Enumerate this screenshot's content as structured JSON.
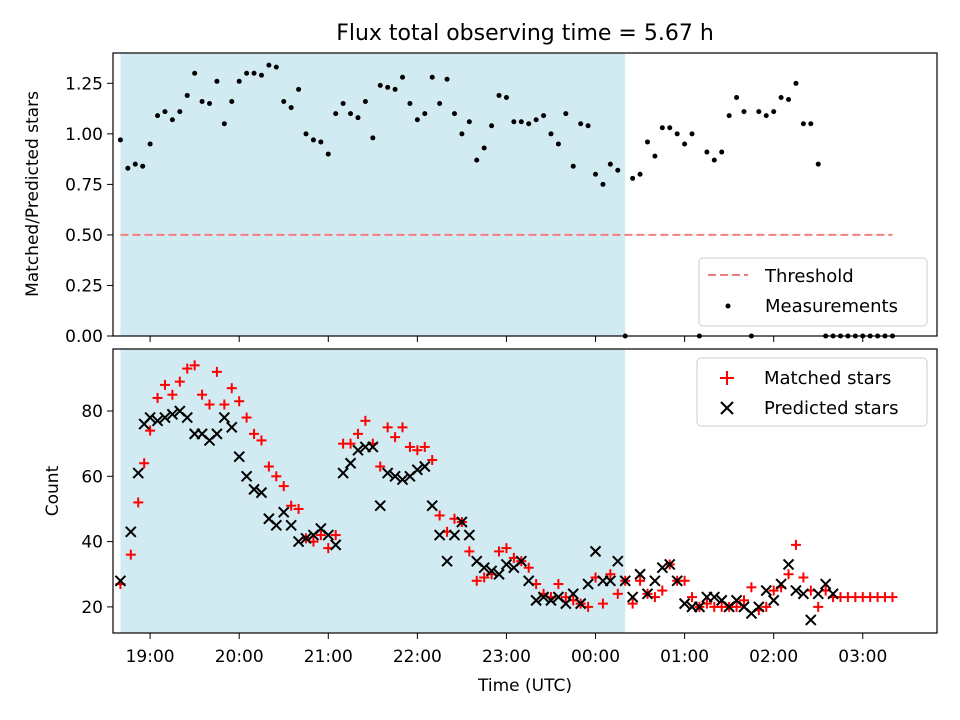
{
  "chart_data": [
    {
      "type": "scatter",
      "title": "Flux total observing time = 5.67 h",
      "ylabel": "Matched/Predicted stars",
      "xlabel": "",
      "xlim": [
        "18:35",
        "03:50"
      ],
      "ylim": [
        0,
        1.4
      ],
      "xticks": [
        "19:00",
        "20:00",
        "21:00",
        "22:00",
        "23:00",
        "00:00",
        "01:00",
        "02:00",
        "03:00"
      ],
      "yticks": [
        "0.00",
        "0.25",
        "0.50",
        "0.75",
        "1.00",
        "1.25"
      ],
      "legend_position": "lower-right",
      "shaded_interval": {
        "start": "18:40",
        "end": "00:20",
        "color": "#add8e6"
      },
      "threshold": {
        "name": "Threshold",
        "value": 0.5,
        "x_start": "18:40",
        "x_end": "03:20",
        "color": "#f08080"
      },
      "series": [
        {
          "name": "Measurements",
          "marker": "dot",
          "color": "#000000",
          "x": [
            "18:40",
            "18:45",
            "18:50",
            "18:55",
            "19:00",
            "19:05",
            "19:10",
            "19:15",
            "19:20",
            "19:25",
            "19:30",
            "19:35",
            "19:40",
            "19:45",
            "19:50",
            "19:55",
            "20:00",
            "20:05",
            "20:10",
            "20:15",
            "20:20",
            "20:25",
            "20:30",
            "20:35",
            "20:40",
            "20:45",
            "20:50",
            "20:55",
            "21:00",
            "21:05",
            "21:10",
            "21:15",
            "21:20",
            "21:25",
            "21:30",
            "21:35",
            "21:40",
            "21:45",
            "21:50",
            "21:55",
            "22:00",
            "22:05",
            "22:10",
            "22:15",
            "22:20",
            "22:25",
            "22:30",
            "22:35",
            "22:40",
            "22:45",
            "22:50",
            "22:55",
            "23:00",
            "23:05",
            "23:10",
            "23:15",
            "23:20",
            "23:25",
            "23:30",
            "23:35",
            "23:40",
            "23:45",
            "23:50",
            "23:55",
            "00:00",
            "00:05",
            "00:10",
            "00:15",
            "00:20",
            "00:25",
            "00:30",
            "00:35",
            "00:40",
            "00:45",
            "00:50",
            "00:55",
            "01:00",
            "01:05",
            "01:10",
            "01:15",
            "01:20",
            "01:25",
            "01:30",
            "01:35",
            "01:40",
            "01:45",
            "01:50",
            "01:55",
            "02:00",
            "02:05",
            "02:10",
            "02:15",
            "02:20",
            "02:25",
            "02:30",
            "02:35",
            "02:40",
            "02:45",
            "02:50",
            "02:55",
            "03:00",
            "03:05",
            "03:10",
            "03:15",
            "03:20"
          ],
          "values": [
            0.97,
            0.83,
            0.85,
            0.84,
            0.95,
            1.09,
            1.11,
            1.07,
            1.11,
            1.19,
            1.3,
            1.16,
            1.15,
            1.26,
            1.05,
            1.16,
            1.26,
            1.3,
            1.3,
            1.29,
            1.34,
            1.33,
            1.16,
            1.13,
            1.22,
            1.0,
            0.97,
            0.96,
            0.9,
            1.1,
            1.15,
            1.1,
            1.08,
            1.16,
            0.98,
            1.24,
            1.23,
            1.22,
            1.28,
            1.15,
            1.07,
            1.1,
            1.28,
            1.15,
            1.27,
            1.1,
            1.0,
            1.06,
            0.87,
            0.93,
            1.04,
            1.19,
            1.18,
            1.06,
            1.06,
            1.05,
            1.07,
            1.09,
            1.0,
            0.95,
            1.1,
            0.84,
            1.05,
            1.04,
            0.8,
            0.75,
            0.85,
            0.82,
            0.0,
            0.78,
            0.8,
            0.96,
            0.89,
            1.03,
            1.03,
            1.0,
            0.95,
            1.0,
            0.0,
            0.91,
            0.87,
            0.91,
            1.09,
            1.18,
            1.11,
            0.0,
            1.11,
            1.09,
            1.11,
            1.18,
            1.17,
            1.25,
            1.05,
            1.05,
            0.85,
            0.0,
            0.0,
            0.0,
            0.0,
            0.0,
            0.0,
            0.0,
            0.0,
            0.0,
            0.0
          ]
        }
      ]
    },
    {
      "type": "scatter",
      "title": "",
      "xlabel": "Time (UTC)",
      "ylabel": "Count",
      "xlim": [
        "18:35",
        "03:50"
      ],
      "ylim": [
        12,
        99
      ],
      "xticks": [
        "19:00",
        "20:00",
        "21:00",
        "22:00",
        "23:00",
        "00:00",
        "01:00",
        "02:00",
        "03:00"
      ],
      "yticks": [
        "20",
        "40",
        "60",
        "80"
      ],
      "legend_position": "top-right",
      "shaded_interval": {
        "start": "18:40",
        "end": "00:20",
        "color": "#add8e6"
      },
      "series": [
        {
          "name": "Matched stars",
          "marker": "plus",
          "color": "#ff0000",
          "x": [
            "18:40",
            "18:47",
            "18:52",
            "18:56",
            "19:00",
            "19:05",
            "19:10",
            "19:15",
            "19:20",
            "19:25",
            "19:30",
            "19:35",
            "19:40",
            "19:45",
            "19:50",
            "19:55",
            "20:00",
            "20:05",
            "20:10",
            "20:15",
            "20:20",
            "20:25",
            "20:30",
            "20:35",
            "20:40",
            "20:45",
            "20:50",
            "20:55",
            "21:00",
            "21:05",
            "21:10",
            "21:15",
            "21:20",
            "21:25",
            "21:30",
            "21:35",
            "21:40",
            "21:45",
            "21:50",
            "21:55",
            "22:00",
            "22:05",
            "22:10",
            "22:15",
            "22:20",
            "22:25",
            "22:30",
            "22:35",
            "22:40",
            "22:45",
            "22:50",
            "22:55",
            "23:00",
            "23:05",
            "23:10",
            "23:15",
            "23:20",
            "23:25",
            "23:30",
            "23:35",
            "23:40",
            "23:45",
            "23:50",
            "23:55",
            "00:00",
            "00:05",
            "00:10",
            "00:15",
            "00:20",
            "00:25",
            "00:30",
            "00:35",
            "00:40",
            "00:45",
            "00:50",
            "00:55",
            "01:00",
            "01:05",
            "01:10",
            "01:15",
            "01:20",
            "01:25",
            "01:30",
            "01:35",
            "01:40",
            "01:45",
            "01:50",
            "01:55",
            "02:00",
            "02:05",
            "02:10",
            "02:15",
            "02:20",
            "02:25",
            "02:30",
            "02:35",
            "02:40",
            "02:45",
            "02:50",
            "02:55",
            "03:00",
            "03:05",
            "03:10",
            "03:15",
            "03:20"
          ],
          "values": [
            27,
            36,
            52,
            64,
            74,
            84,
            88,
            85,
            89,
            93,
            94,
            85,
            82,
            92,
            82,
            87,
            83,
            78,
            73,
            71,
            63,
            60,
            57,
            51,
            50,
            41,
            40,
            42,
            38,
            42,
            70,
            70,
            73,
            77,
            70,
            63,
            75,
            72,
            75,
            69,
            68,
            69,
            65,
            48,
            43,
            47,
            46,
            37,
            28,
            29,
            30,
            37,
            38,
            35,
            34,
            32,
            27,
            24,
            23,
            27,
            23,
            22,
            21,
            20,
            29,
            21,
            30,
            24,
            28,
            21,
            28,
            24,
            23,
            25,
            33,
            28,
            28,
            23,
            20,
            21,
            20,
            20,
            20,
            20,
            22,
            26,
            19,
            20,
            25,
            26,
            30,
            39,
            29,
            25,
            20,
            25,
            23,
            23,
            23,
            23,
            23,
            23,
            23,
            23,
            23
          ]
        },
        {
          "name": "Predicted stars",
          "marker": "x",
          "color": "#000000",
          "x": [
            "18:40",
            "18:47",
            "18:52",
            "18:56",
            "19:00",
            "19:05",
            "19:10",
            "19:15",
            "19:20",
            "19:25",
            "19:30",
            "19:35",
            "19:40",
            "19:45",
            "19:50",
            "19:55",
            "20:00",
            "20:05",
            "20:10",
            "20:15",
            "20:20",
            "20:25",
            "20:30",
            "20:35",
            "20:40",
            "20:45",
            "20:50",
            "20:55",
            "21:00",
            "21:05",
            "21:10",
            "21:15",
            "21:20",
            "21:25",
            "21:30",
            "21:35",
            "21:40",
            "21:45",
            "21:50",
            "21:55",
            "22:00",
            "22:05",
            "22:10",
            "22:15",
            "22:20",
            "22:25",
            "22:30",
            "22:35",
            "22:40",
            "22:45",
            "22:50",
            "22:55",
            "23:00",
            "23:05",
            "23:10",
            "23:15",
            "23:20",
            "23:25",
            "23:30",
            "23:35",
            "23:40",
            "23:45",
            "23:50",
            "23:55",
            "00:00",
            "00:05",
            "00:10",
            "00:15",
            "00:20",
            "00:25",
            "00:30",
            "00:35",
            "00:40",
            "00:45",
            "00:50",
            "00:55",
            "01:00",
            "01:05",
            "01:10",
            "01:15",
            "01:20",
            "01:25",
            "01:30",
            "01:35",
            "01:40",
            "01:45",
            "01:50",
            "01:55",
            "02:00",
            "02:05",
            "02:10",
            "02:15",
            "02:20",
            "02:25",
            "02:30",
            "02:35",
            "02:40"
          ],
          "values": [
            28,
            43,
            61,
            76,
            78,
            77,
            78,
            79,
            80,
            78,
            73,
            73,
            71,
            73,
            78,
            75,
            66,
            60,
            56,
            55,
            47,
            45,
            49,
            45,
            40,
            41,
            42,
            44,
            42,
            39,
            61,
            64,
            68,
            69,
            69,
            51,
            61,
            60,
            59,
            60,
            62,
            63,
            51,
            42,
            34,
            42,
            46,
            42,
            34,
            32,
            31,
            30,
            33,
            32,
            34,
            28,
            22,
            23,
            22,
            23,
            21,
            24,
            21,
            27,
            37,
            28,
            28,
            34,
            28,
            23,
            30,
            24,
            28,
            32,
            33,
            28,
            21,
            20,
            20,
            23,
            23,
            22,
            20,
            22,
            20,
            18,
            20,
            25,
            22,
            27,
            33,
            25,
            24,
            16,
            24,
            27,
            24
          ]
        }
      ]
    }
  ]
}
